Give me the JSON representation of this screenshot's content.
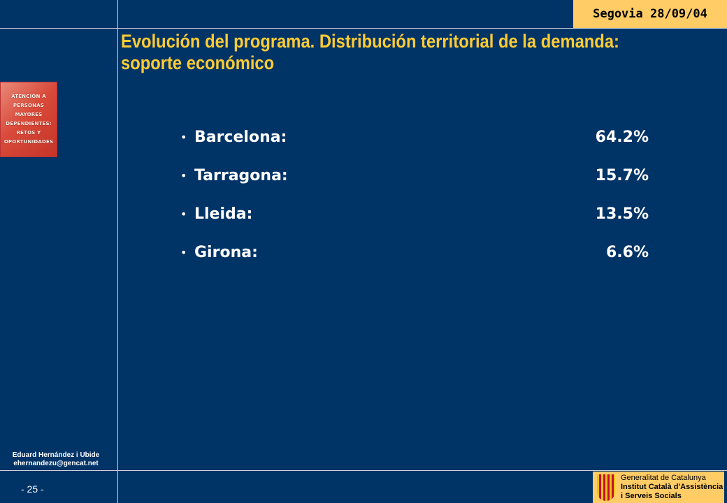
{
  "header": {
    "date_badge": "Segovia 28/09/04"
  },
  "slide": {
    "title_line1": "Evolución del programa. Distribución territorial de la demanda:",
    "title_line2": "soporte económico",
    "items": [
      {
        "label": "Barcelona:",
        "value": "64.2%"
      },
      {
        "label": "Tarragona:",
        "value": "15.7%"
      },
      {
        "label": "Lleida:",
        "value": "13.5%"
      },
      {
        "label": "Girona:",
        "value": "6.6%"
      }
    ]
  },
  "sidebar": {
    "book_cover_lines": [
      "ATENCIÓN A",
      "PERSONAS",
      "MAYORES",
      "DEPENDIENTES:",
      "RETOS Y",
      "OPORTUNIDADES"
    ],
    "author_name": "Eduard Hernández i Ubide",
    "author_email": "ehernandezu@gencat.net",
    "page_number": "- 25 -"
  },
  "footer_logo": {
    "line1": "Generalitat de Catalunya",
    "line2": "Institut Català d'Assistència",
    "line3": "i Serveis Socials",
    "flag_colors": [
      "#e8c21c",
      "#c8102e"
    ]
  },
  "colors": {
    "background": "#003366",
    "title": "#ffcc33",
    "badge": "#ffcc66"
  }
}
